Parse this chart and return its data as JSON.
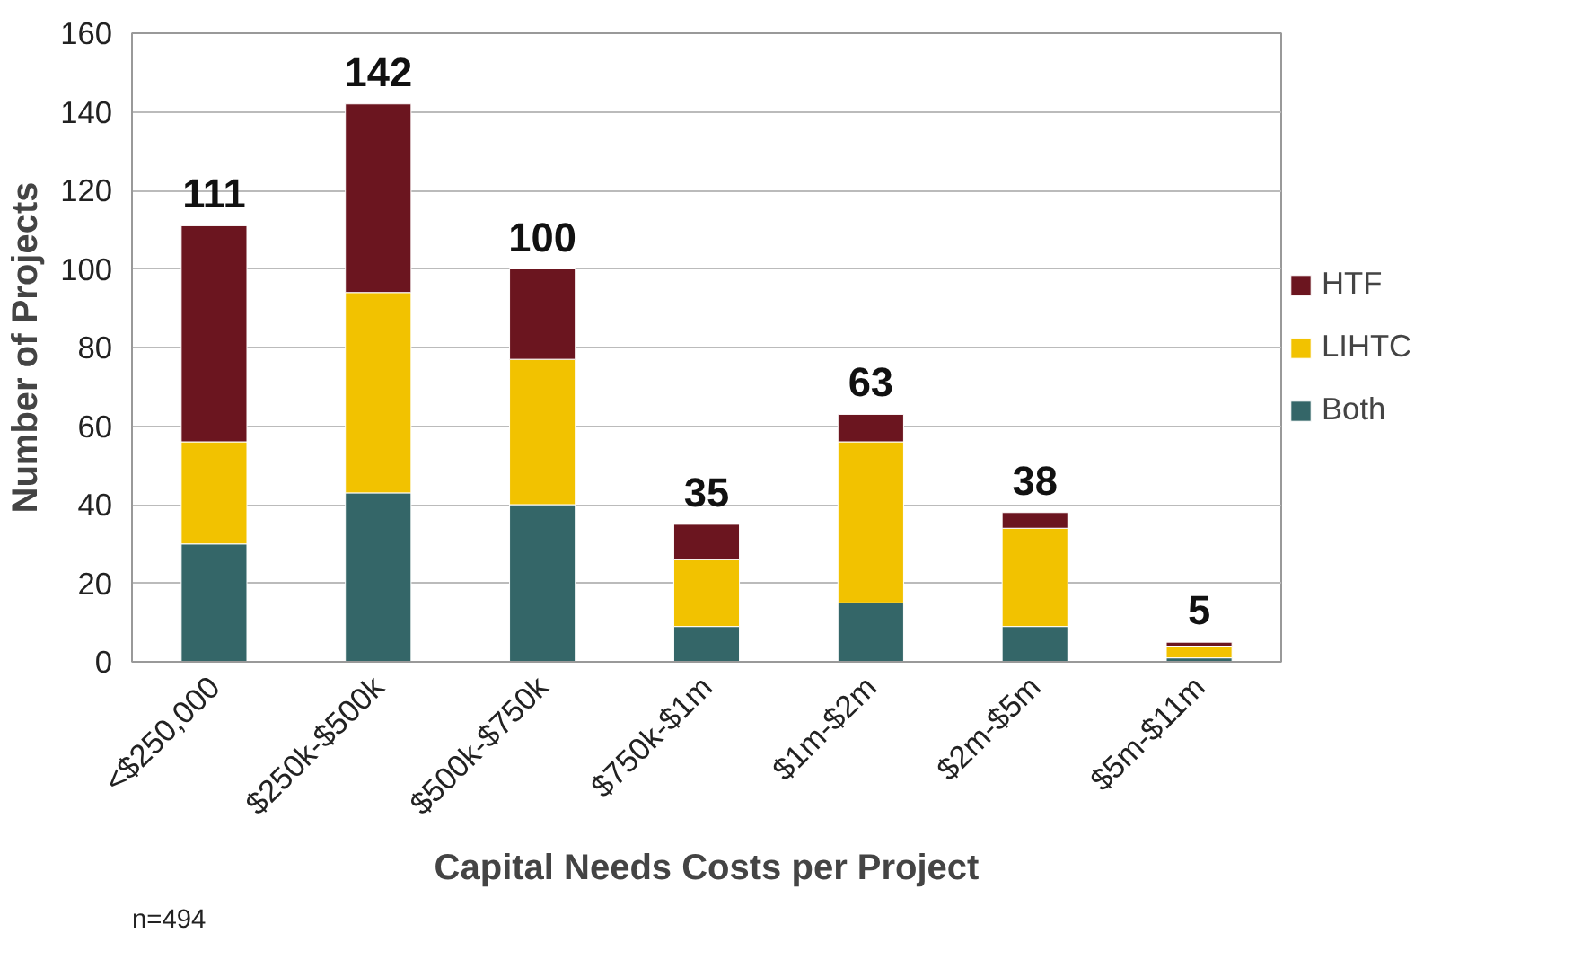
{
  "chart_data": {
    "type": "bar",
    "stacked": true,
    "xlabel": "Capital Needs Costs per Project",
    "ylabel": "Number of Projects",
    "categories": [
      "<$250,000",
      "$250k-$500k",
      "$500k-$750k",
      "$750k-$1m",
      "$1m-$2m",
      "$2m-$5m",
      "$5m-$11m"
    ],
    "series": [
      {
        "name": "Both",
        "color": "#346668",
        "values": [
          30,
          43,
          40,
          9,
          15,
          9,
          1
        ]
      },
      {
        "name": "LIHTC",
        "color": "#f2c200",
        "values": [
          26,
          51,
          37,
          17,
          41,
          25,
          3
        ]
      },
      {
        "name": "HTF",
        "color": "#6b151f",
        "values": [
          55,
          48,
          23,
          9,
          7,
          4,
          1
        ]
      }
    ],
    "totals": [
      "111",
      "142",
      "100",
      "35",
      "63",
      "38",
      "5"
    ],
    "ylim": [
      0,
      160
    ],
    "yticks": [
      0,
      20,
      40,
      60,
      80,
      100,
      120,
      140,
      160
    ],
    "grid": "y",
    "legend": "right",
    "annotations": [
      "n=494"
    ]
  }
}
